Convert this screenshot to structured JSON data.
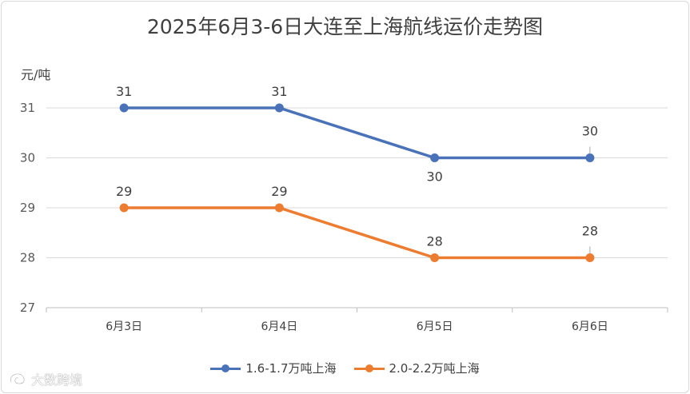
{
  "chart_data": {
    "type": "line",
    "title": "2025年6月3-6日大连至上海航线运价走势图",
    "ylabel": "元/吨",
    "categories": [
      "6月3日",
      "6月4日",
      "6月5日",
      "6月6日"
    ],
    "ylim": [
      27,
      31
    ],
    "yticks": [
      27,
      28,
      29,
      30,
      31
    ],
    "grid": true,
    "legend_position": "bottom",
    "series": [
      {
        "name": "1.6-1.7万吨上海",
        "values": [
          31,
          31,
          30,
          30
        ],
        "color": "#4a72b8",
        "label_side": [
          "above",
          "above",
          "below",
          "above"
        ]
      },
      {
        "name": "2.0-2.2万吨上海",
        "values": [
          29,
          29,
          28,
          28
        ],
        "color": "#ec7c30",
        "label_side": [
          "above",
          "above",
          "above",
          "above"
        ]
      }
    ]
  },
  "watermark": {
    "text": "大数跨境"
  }
}
